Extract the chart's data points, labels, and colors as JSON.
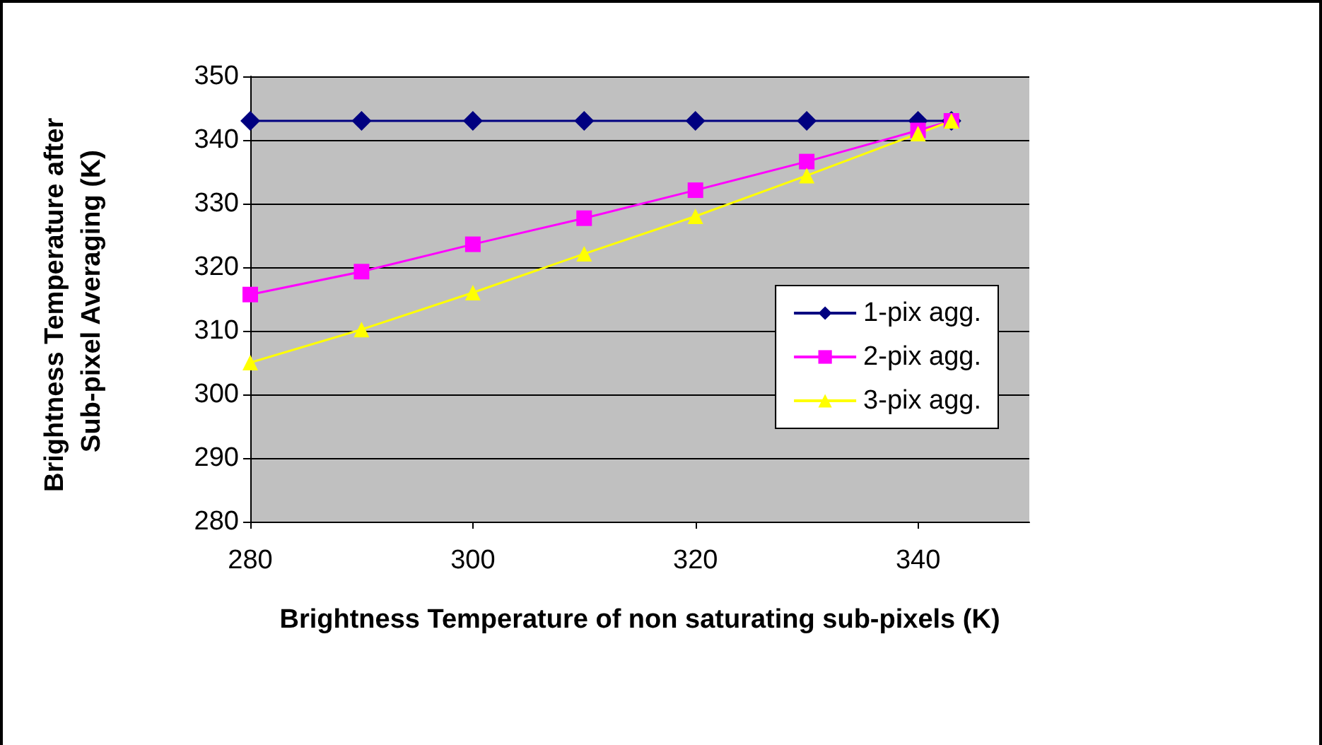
{
  "chart_data": {
    "type": "line",
    "xlabel": "Brightness Temperature of non saturating sub-pixels (K)",
    "ylabel": "Brightness Temperature after Sub-pixel Averaging (K)",
    "x": [
      280,
      290,
      300,
      310,
      320,
      330,
      340,
      343
    ],
    "series": [
      {
        "name": "1-pix agg.",
        "color": "#000080",
        "marker": "diamond",
        "values": [
          343,
          343,
          343,
          343,
          343,
          343,
          343,
          343
        ]
      },
      {
        "name": "2-pix agg.",
        "color": "#ff00ff",
        "marker": "square",
        "values": [
          315.7,
          319.3,
          323.6,
          327.7,
          332.1,
          336.6,
          341.5,
          343
        ]
      },
      {
        "name": "3-pix agg.",
        "color": "#ffff00",
        "marker": "triangle",
        "values": [
          305,
          310.2,
          316,
          322.1,
          328,
          334.4,
          341,
          343
        ]
      }
    ],
    "xlim": [
      280,
      350
    ],
    "xticks": [
      280,
      300,
      320,
      340
    ],
    "ylim": [
      280,
      350
    ],
    "yticks": [
      280,
      290,
      300,
      310,
      320,
      330,
      340,
      350
    ],
    "grid": "y",
    "legend": "right"
  }
}
